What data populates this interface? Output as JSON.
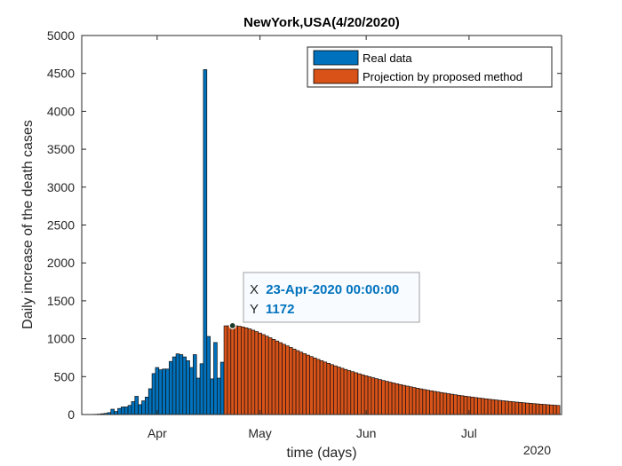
{
  "chart_data": {
    "type": "bar",
    "title": "NewYork,USA(4/20/2020)",
    "xlabel": "time (days)",
    "ylabel": "Daily increase of the death cases",
    "ylim": [
      0,
      5000
    ],
    "yticks": [
      0,
      500,
      1000,
      1500,
      2000,
      2500,
      3000,
      3500,
      4000,
      4500,
      5000
    ],
    "xlim": [
      "2020-03-10",
      "2020-07-28"
    ],
    "xticks": [
      {
        "date": "2020-04-01",
        "label": "Apr"
      },
      {
        "date": "2020-05-01",
        "label": "May"
      },
      {
        "date": "2020-06-01",
        "label": "Jun"
      },
      {
        "date": "2020-07-01",
        "label": "Jul"
      }
    ],
    "year_label": "2020",
    "legend_position": "top-right",
    "grid": false,
    "series": [
      {
        "name": "Real data",
        "color": "#0072BD",
        "start_date": "2020-03-14",
        "values": [
          3,
          5,
          10,
          15,
          25,
          70,
          40,
          80,
          100,
          100,
          120,
          170,
          240,
          130,
          180,
          230,
          340,
          540,
          620,
          590,
          600,
          600,
          700,
          760,
          800,
          790,
          760,
          710,
          620,
          790,
          480,
          670,
          4550,
          1030,
          470,
          950,
          480,
          690
        ]
      },
      {
        "name": "Projection by proposed method",
        "color": "#D95319",
        "start_date": "2020-04-21",
        "start_value": 1170,
        "peak_date": "2020-04-23",
        "peak_value": 1172,
        "end_date": "2020-07-27",
        "end_value": 98
      }
    ],
    "annotation": {
      "x": "23-Apr-2020 00:00:00",
      "y": "1172",
      "x_label": "X",
      "y_label": "Y",
      "point_date": "2020-04-23",
      "point_value": 1172
    }
  }
}
